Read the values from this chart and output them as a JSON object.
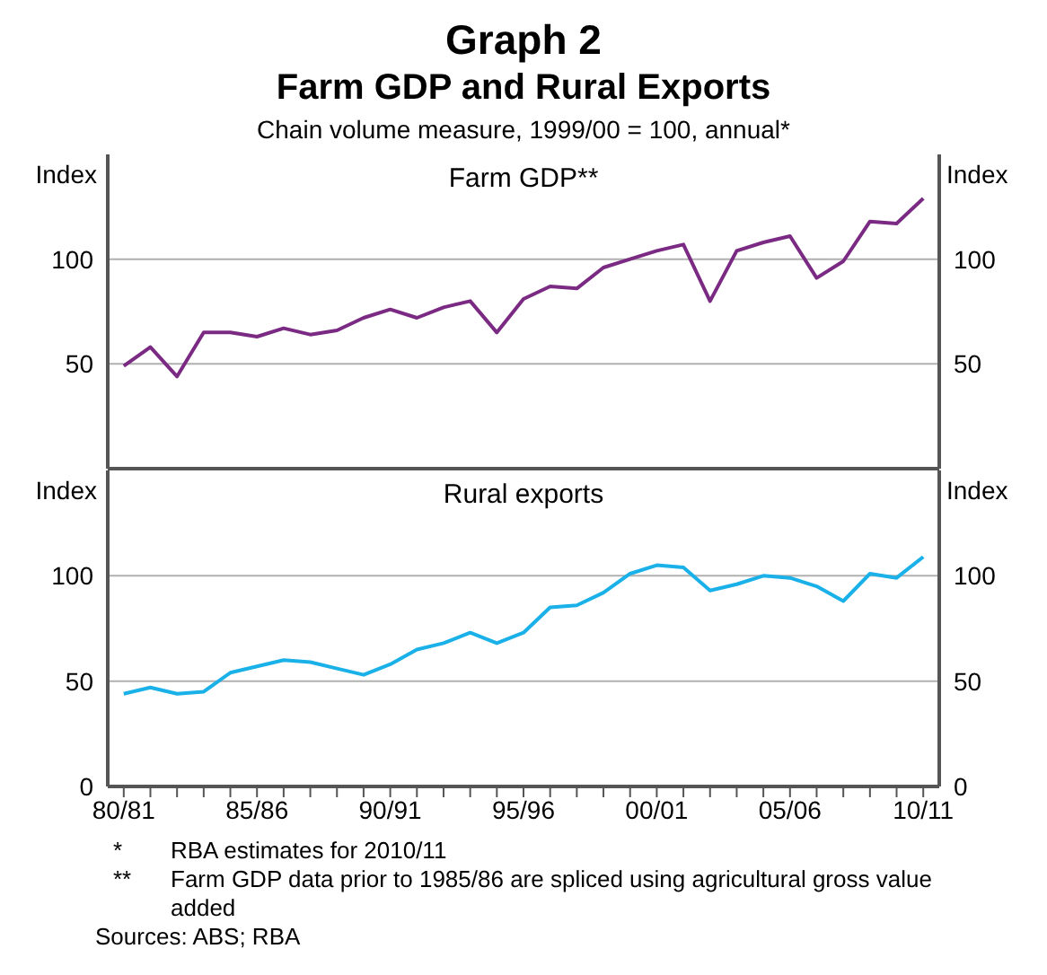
{
  "chart_data": [
    {
      "type": "line",
      "title": "Graph 2",
      "subtitle": "Farm GDP and Rural Exports",
      "annotations": [
        "Chain volume measure, 1999/00 = 100, annual*"
      ],
      "ylabel": "Index",
      "y2label": "Index",
      "series": [
        {
          "name": "Farm GDP**",
          "color": "#7b2a83",
          "values": [
            49,
            58,
            44,
            65,
            65,
            63,
            67,
            64,
            66,
            72,
            76,
            72,
            77,
            80,
            65,
            81,
            87,
            86,
            96,
            100,
            104,
            107,
            80,
            104,
            108,
            111,
            91,
            99,
            118,
            117,
            129
          ]
        }
      ],
      "ylim": [
        0,
        150
      ],
      "yticks": [
        50,
        100
      ],
      "y2lim": [
        0,
        150
      ],
      "y2ticks": [
        50,
        100
      ],
      "grid": "y",
      "tick_labels": "y"
    },
    {
      "type": "line",
      "ylabel": "Index",
      "y2label": "Index",
      "annotations": [
        "*\tRBA estimates for 2010/11",
        "**\tFarm GDP data prior to 1985/86 are spliced using agricultural gross value added",
        "Sources: ABS; RBA"
      ],
      "categories": [
        "80/81",
        null,
        null,
        null,
        null,
        "85/86",
        null,
        null,
        null,
        null,
        "90/91",
        null,
        null,
        null,
        null,
        "95/96",
        null,
        null,
        null,
        null,
        "00/01",
        null,
        null,
        null,
        null,
        "05/06",
        null,
        null,
        null,
        null,
        "10/11"
      ],
      "series": [
        {
          "name": "Rural exports",
          "color": "#1ab0e8",
          "values": [
            44,
            47,
            44,
            45,
            54,
            57,
            60,
            59,
            56,
            53,
            58,
            65,
            68,
            73,
            68,
            73,
            85,
            86,
            92,
            101,
            105,
            104,
            93,
            96,
            100,
            99,
            95,
            88,
            101,
            99,
            109
          ]
        }
      ],
      "ylim": [
        0,
        150
      ],
      "yticks": [
        0,
        50,
        100
      ],
      "y2lim": [
        0,
        150
      ],
      "y2ticks": [
        0,
        50,
        100
      ],
      "grid": "y"
    }
  ]
}
